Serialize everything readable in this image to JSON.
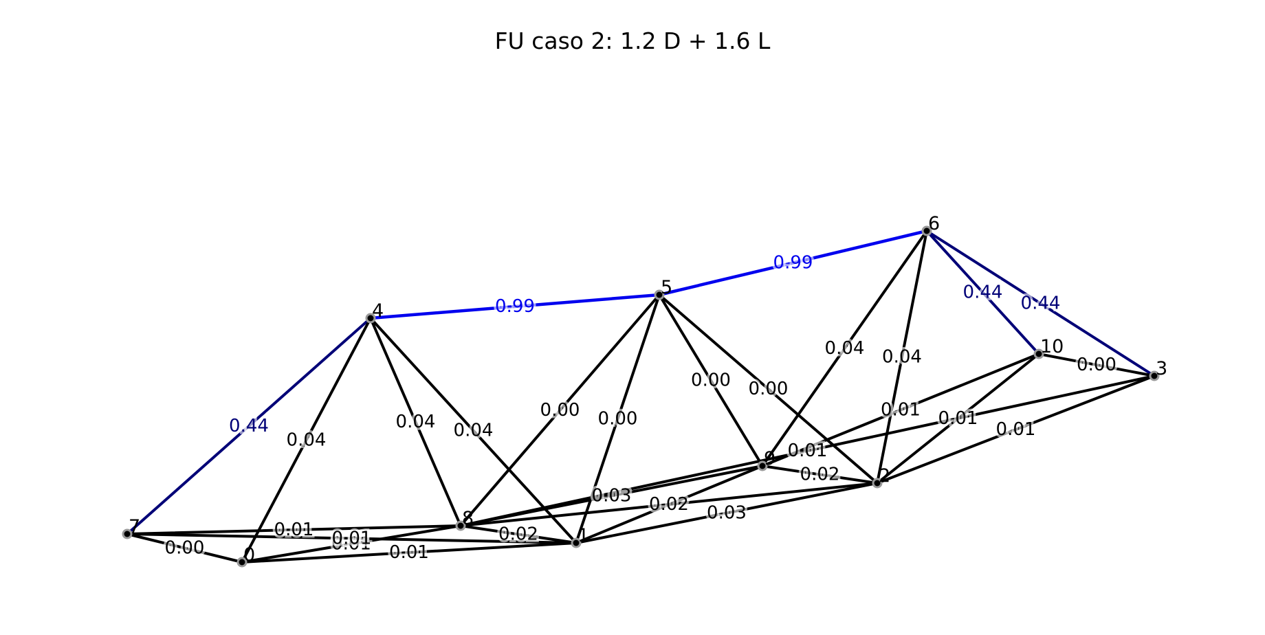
{
  "title": "FU caso 2: 1.2 D + 1.6 L",
  "colors": {
    "critical": "#0000ee",
    "high": "#000077",
    "normal": "#000000",
    "label_critical": "#0000ee",
    "label_high": "#000077",
    "label_normal": "#000000",
    "node_fill": "#000000",
    "node_edge": "#999999"
  },
  "nodes": [
    {
      "id": "0",
      "label": "0"
    },
    {
      "id": "1",
      "label": "1"
    },
    {
      "id": "2",
      "label": "2"
    },
    {
      "id": "3",
      "label": "3"
    },
    {
      "id": "4",
      "label": "4"
    },
    {
      "id": "5",
      "label": "5"
    },
    {
      "id": "6",
      "label": "6"
    },
    {
      "id": "7",
      "label": "7"
    },
    {
      "id": "8",
      "label": "8"
    },
    {
      "id": "9",
      "label": "9"
    },
    {
      "id": "10",
      "label": "10"
    }
  ],
  "members": [
    {
      "from": "4",
      "to": "5",
      "value": "0.99",
      "level": "critical"
    },
    {
      "from": "5",
      "to": "6",
      "value": "0.99",
      "level": "critical"
    },
    {
      "from": "7",
      "to": "4",
      "value": "0.44",
      "level": "high"
    },
    {
      "from": "6",
      "to": "10",
      "value": "0.44",
      "level": "high"
    },
    {
      "from": "6",
      "to": "3",
      "value": "0.44",
      "level": "high"
    },
    {
      "from": "0",
      "to": "4",
      "value": "0.04",
      "level": "normal"
    },
    {
      "from": "4",
      "to": "8",
      "value": "0.04",
      "level": "normal"
    },
    {
      "from": "4",
      "to": "1",
      "value": "0.04",
      "level": "normal"
    },
    {
      "from": "8",
      "to": "5",
      "value": "0.00",
      "level": "normal"
    },
    {
      "from": "1",
      "to": "5",
      "value": "0.00",
      "level": "normal"
    },
    {
      "from": "5",
      "to": "9",
      "value": "0.00",
      "level": "normal"
    },
    {
      "from": "5",
      "to": "2",
      "value": "0.00",
      "level": "normal"
    },
    {
      "from": "9",
      "to": "6",
      "value": "0.04",
      "level": "normal"
    },
    {
      "from": "2",
      "to": "6",
      "value": "0.04",
      "level": "normal"
    },
    {
      "from": "10",
      "to": "3",
      "value": "0.00",
      "level": "normal"
    },
    {
      "from": "9",
      "to": "10",
      "value": "0.01",
      "level": "normal"
    },
    {
      "from": "8",
      "to": "3",
      "value": "0.01",
      "level": "normal"
    },
    {
      "from": "2",
      "to": "10",
      "value": "0.01",
      "level": "normal"
    },
    {
      "from": "2",
      "to": "3",
      "value": "0.01",
      "level": "normal"
    },
    {
      "from": "9",
      "to": "2",
      "value": "0.02",
      "level": "normal"
    },
    {
      "from": "8",
      "to": "9",
      "value": "0.03",
      "level": "normal"
    },
    {
      "from": "8",
      "to": "2",
      "value": "0.02",
      "level": "normal"
    },
    {
      "from": "1",
      "to": "2",
      "value": "0.03",
      "level": "normal"
    },
    {
      "from": "7",
      "to": "8",
      "value": "0.01",
      "level": "normal"
    },
    {
      "from": "0",
      "to": "8",
      "value": "0.01",
      "level": "normal"
    },
    {
      "from": "7",
      "to": "1",
      "value": "0.01",
      "level": "normal"
    },
    {
      "from": "0",
      "to": "1",
      "value": "0.01",
      "level": "normal"
    },
    {
      "from": "8",
      "to": "1",
      "value": "0.02",
      "level": "normal"
    },
    {
      "from": "7",
      "to": "0",
      "value": "0.00",
      "level": "normal"
    },
    {
      "from": "1",
      "to": "9",
      "value": "",
      "level": "normal"
    }
  ]
}
